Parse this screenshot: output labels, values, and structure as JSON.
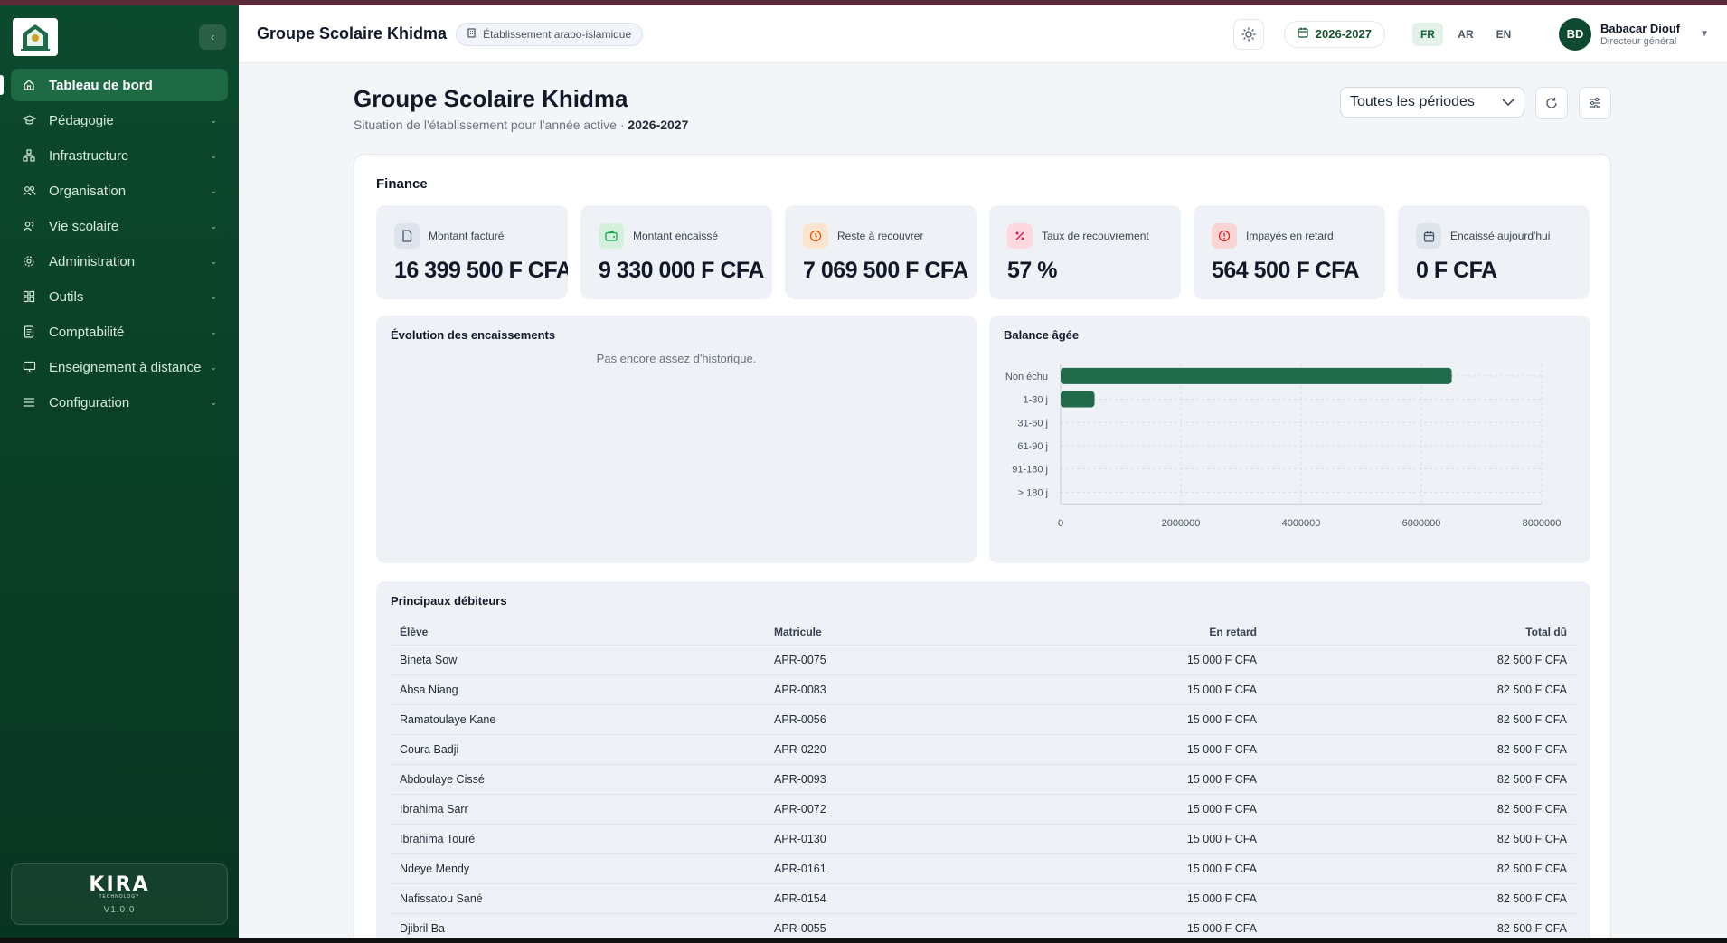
{
  "sidebar": {
    "items": [
      {
        "label": "Tableau de bord",
        "icon": "home-icon",
        "active": true
      },
      {
        "label": "Pédagogie",
        "icon": "graduation-cap-icon"
      },
      {
        "label": "Infrastructure",
        "icon": "network-icon"
      },
      {
        "label": "Organisation",
        "icon": "users-icon"
      },
      {
        "label": "Vie scolaire",
        "icon": "user-group-icon"
      },
      {
        "label": "Administration",
        "icon": "gear-icon"
      },
      {
        "label": "Outils",
        "icon": "grid-icon"
      },
      {
        "label": "Comptabilité",
        "icon": "document-icon"
      },
      {
        "label": "Enseignement à distance",
        "icon": "monitor-icon"
      },
      {
        "label": "Configuration",
        "icon": "sliders-icon"
      }
    ],
    "brand": {
      "name": "KIRA",
      "tagline": "TECHNOLOGY",
      "version": "V1.0.0"
    }
  },
  "header": {
    "title": "Groupe Scolaire Khidma",
    "badge": "Établissement arabo-islamique",
    "year": "2026-2027",
    "languages": [
      "FR",
      "AR",
      "EN"
    ],
    "active_language": "FR",
    "user": {
      "initials": "BD",
      "name": "Babacar Diouf",
      "role": "Directeur général"
    }
  },
  "page": {
    "title": "Groupe Scolaire Khidma",
    "subtitle": "Situation de l'établissement pour l'année active · ",
    "subtitle_year": "2026-2027",
    "period_select": "Toutes les périodes"
  },
  "finance": {
    "title": "Finance",
    "kpis": [
      {
        "label": "Montant facturé",
        "value": "16 399 500 F CFA",
        "icon": "file-icon",
        "color": "#475569",
        "bg": "#dde4ec"
      },
      {
        "label": "Montant encaissé",
        "value": "9 330 000 F CFA",
        "icon": "wallet-icon",
        "color": "#16a34a",
        "bg": "#d5f0dd"
      },
      {
        "label": "Reste à recouvrer",
        "value": "7 069 500 F CFA",
        "icon": "clock-icon",
        "color": "#ea580c",
        "bg": "#fde4cf"
      },
      {
        "label": "Taux de recouvrement",
        "value": "57 %",
        "icon": "percent-icon",
        "color": "#e11d48",
        "bg": "#fbd9df"
      },
      {
        "label": "Impayés en retard",
        "value": "564 500 F CFA",
        "icon": "alert-icon",
        "color": "#dc2626",
        "bg": "#fbd5d5"
      },
      {
        "label": "Encaissé aujourd'hui",
        "value": "0 F CFA",
        "icon": "calendar-icon",
        "color": "#475569",
        "bg": "#dde4ec"
      }
    ]
  },
  "evolution": {
    "title": "Évolution des encaissements",
    "empty": "Pas encore assez d'historique."
  },
  "chart_data": {
    "type": "bar",
    "orientation": "horizontal",
    "title": "Balance âgée",
    "categories": [
      "Non échu",
      "1-30 j",
      "31-60 j",
      "61-90 j",
      "91-180 j",
      "> 180 j"
    ],
    "values": [
      6505000,
      564500,
      0,
      0,
      0,
      0
    ],
    "xlim": [
      0,
      8000000
    ],
    "xticks": [
      0,
      2000000,
      4000000,
      6000000,
      8000000
    ],
    "color": "#1f6b4a",
    "grid": true
  },
  "debtors": {
    "title": "Principaux débiteurs",
    "columns": [
      "Élève",
      "Matricule",
      "En retard",
      "Total dû"
    ],
    "rows": [
      [
        "Bineta Sow",
        "APR-0075",
        "15 000 F CFA",
        "82 500 F CFA"
      ],
      [
        "Absa Niang",
        "APR-0083",
        "15 000 F CFA",
        "82 500 F CFA"
      ],
      [
        "Ramatoulaye Kane",
        "APR-0056",
        "15 000 F CFA",
        "82 500 F CFA"
      ],
      [
        "Coura Badji",
        "APR-0220",
        "15 000 F CFA",
        "82 500 F CFA"
      ],
      [
        "Abdoulaye Cissé",
        "APR-0093",
        "15 000 F CFA",
        "82 500 F CFA"
      ],
      [
        "Ibrahima Sarr",
        "APR-0072",
        "15 000 F CFA",
        "82 500 F CFA"
      ],
      [
        "Ibrahima Touré",
        "APR-0130",
        "15 000 F CFA",
        "82 500 F CFA"
      ],
      [
        "Ndeye Mendy",
        "APR-0161",
        "15 000 F CFA",
        "82 500 F CFA"
      ],
      [
        "Nafissatou Sané",
        "APR-0154",
        "15 000 F CFA",
        "82 500 F CFA"
      ],
      [
        "Djibril Ba",
        "APR-0055",
        "15 000 F CFA",
        "82 500 F CFA"
      ]
    ]
  }
}
